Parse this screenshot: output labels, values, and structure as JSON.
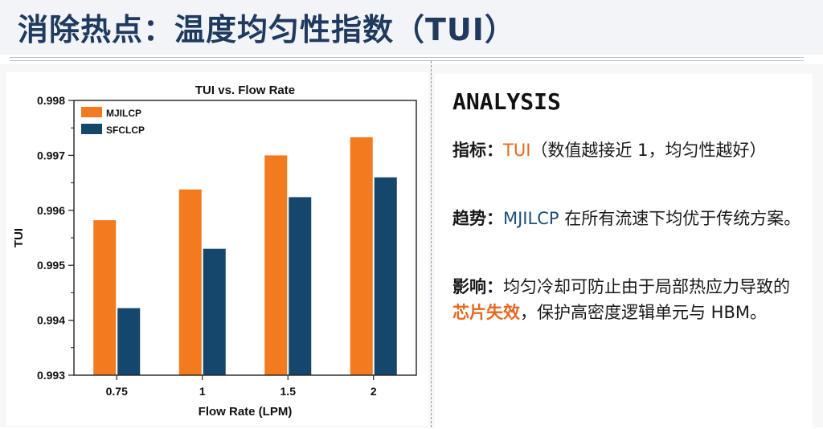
{
  "page": {
    "title": "消除热点：温度均匀性指数（TUI）"
  },
  "analysis": {
    "heading": "ANALYSIS",
    "metric_label": "指标：",
    "metric_term": "TUI",
    "metric_text": "（数值越接近 1，均匀性越好）",
    "trend_label": "趋势：",
    "trend_term": "MJILCP",
    "trend_text": " 在所有流速下均优于传统方案。",
    "impact_label": "影响：",
    "impact_text1": "均匀冷却可防止由于局部热应力导致的",
    "impact_term": "芯片失效",
    "impact_text2": "，保护高密度逻辑单元与 HBM。"
  },
  "chart_data": {
    "type": "bar",
    "title": "TUI vs. Flow Rate",
    "xlabel": "Flow Rate (LPM)",
    "ylabel": "TUI",
    "categories": [
      "0.75",
      "1",
      "1.5",
      "2"
    ],
    "series": [
      {
        "name": "MJILCP",
        "color": "#f47a1f",
        "values": [
          0.99582,
          0.99638,
          0.997,
          0.99733
        ]
      },
      {
        "name": "SFCLCP",
        "color": "#15466b",
        "values": [
          0.99422,
          0.9953,
          0.99624,
          0.9966
        ]
      }
    ],
    "ylim": [
      0.993,
      0.998
    ],
    "yticks": [
      "0.993",
      "0.994",
      "0.995",
      "0.996",
      "0.997",
      "0.998"
    ],
    "legend_position": "top-left",
    "grid": false
  }
}
